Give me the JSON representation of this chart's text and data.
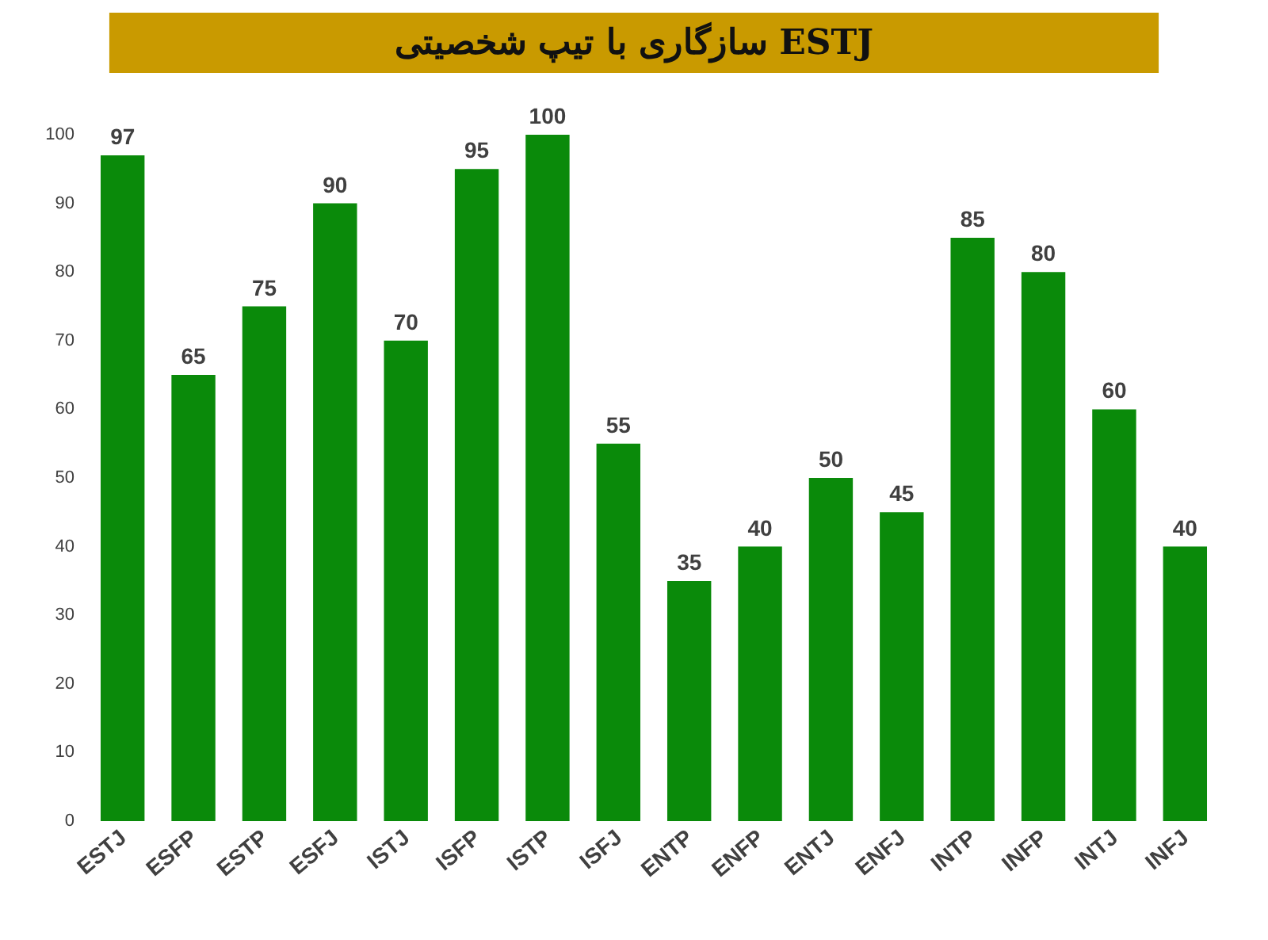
{
  "chart_data": {
    "type": "bar",
    "title": "سازگاری با تیپ شخصیتی ESTJ",
    "categories": [
      "ESTJ",
      "ESFP",
      "ESTP",
      "ESFJ",
      "ISTJ",
      "ISFP",
      "ISTP",
      "ISFJ",
      "ENTP",
      "ENFP",
      "ENTJ",
      "ENFJ",
      "INTP",
      "INFP",
      "INTJ",
      "INFJ"
    ],
    "values": [
      97,
      65,
      75,
      90,
      70,
      95,
      100,
      55,
      35,
      40,
      50,
      45,
      85,
      80,
      60,
      40
    ],
    "color": "#0a8a0a",
    "ylim": [
      0,
      100
    ],
    "yticks": [
      0,
      10,
      20,
      30,
      40,
      50,
      60,
      70,
      80,
      90,
      100
    ],
    "grid": false,
    "data_labels": true
  }
}
